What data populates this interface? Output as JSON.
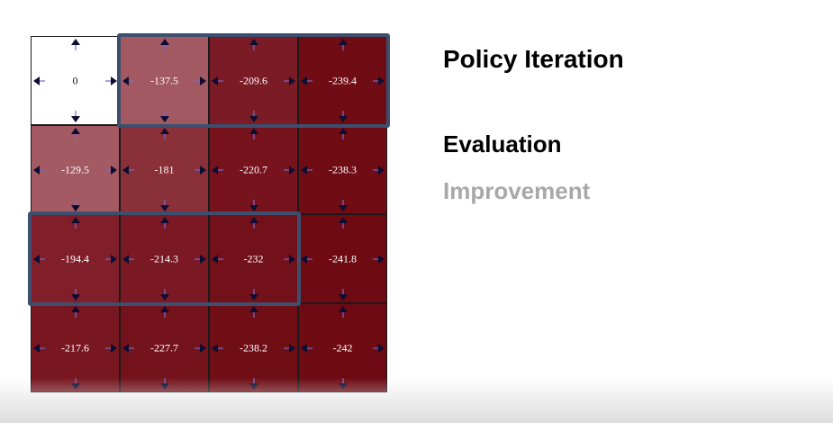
{
  "title": "Policy Iteration",
  "steps": [
    {
      "label": "Evaluation",
      "active": true,
      "color": "#000000"
    },
    {
      "label": "Improvement",
      "active": false,
      "color": "#a8a8a8"
    }
  ],
  "grid": {
    "rows": 4,
    "cols": 4,
    "values": [
      [
        "0",
        "-137.5",
        "-209.6",
        "-239.4"
      ],
      [
        "-129.5",
        "-181",
        "-220.7",
        "-238.3"
      ],
      [
        "-194.4",
        "-214.3",
        "-232",
        "-241.8"
      ],
      [
        "-217.6",
        "-227.7",
        "-238.2",
        "-242"
      ]
    ],
    "colors": [
      [
        "#ffffff",
        "#a35962",
        "#7b1b26",
        "#700c14"
      ],
      [
        "#a35a63",
        "#8a3039",
        "#76131d",
        "#700c14"
      ],
      [
        "#801f29",
        "#7a1923",
        "#73111b",
        "#6e0a12"
      ],
      [
        "#781720",
        "#75131c",
        "#700e16",
        "#6e0a12"
      ]
    ],
    "highlights": [
      {
        "row": 0,
        "col_start": 1,
        "col_end": 3
      },
      {
        "row": 2,
        "col_start": 0,
        "col_end": 2
      }
    ]
  },
  "arrow_icon": "arrow-icon",
  "colors": {
    "highlight_border": "#3d4f6f",
    "arrow_fill": "#0d0d33",
    "arrow_stroke": "#7a6acc"
  }
}
